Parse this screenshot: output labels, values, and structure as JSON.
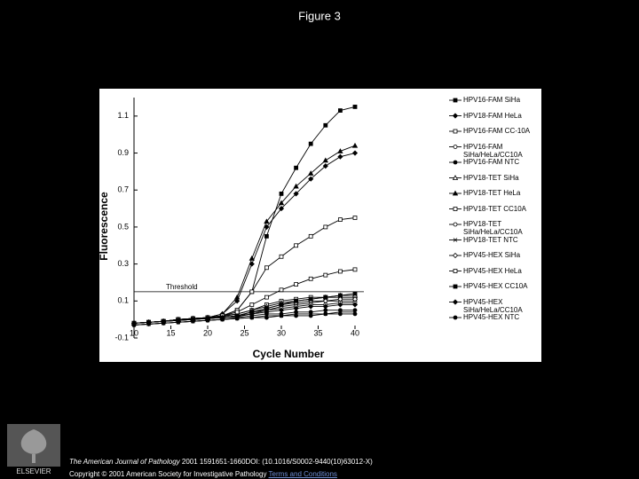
{
  "slide_title": "Figure 3",
  "publisher_logo": "ELSEVIER",
  "footer": {
    "journal": "The American Journal of Pathology",
    "citation": "2001 1591651-1660DOI: (10.1016/S0002-9440(10)63012-X)",
    "copyright": "Copyright © 2001 American Society for Investigative Pathology",
    "link": "Terms and Conditions"
  },
  "chart_data": {
    "type": "line",
    "x_label": "Cycle Number",
    "y_label": "Fluorescence",
    "x": [
      10,
      12,
      14,
      16,
      18,
      20,
      22,
      24,
      26,
      28,
      30,
      32,
      34,
      36,
      38,
      40
    ],
    "xlim": [
      10,
      40
    ],
    "xticks": [
      10,
      15,
      20,
      25,
      30,
      35,
      40
    ],
    "ylim": [
      -0.1,
      1.2
    ],
    "yticks": [
      -0.1,
      0.1,
      0.3,
      0.5,
      0.7,
      0.9,
      1.1
    ],
    "threshold": {
      "value": 0.15,
      "label": "Threshold"
    },
    "series": [
      {
        "name": "HPV16-FAM SiHa",
        "color": "#000000",
        "marker": "square",
        "values": [
          -0.02,
          -0.015,
          -0.01,
          0,
          0.005,
          0.01,
          0.02,
          0.05,
          0.15,
          0.45,
          0.68,
          0.82,
          0.95,
          1.05,
          1.13,
          1.15
        ]
      },
      {
        "name": "HPV18-FAM HeLa",
        "color": "#000000",
        "marker": "diamond",
        "values": [
          -0.02,
          -0.015,
          -0.01,
          0,
          0.005,
          0.01,
          0.03,
          0.1,
          0.3,
          0.5,
          0.6,
          0.68,
          0.76,
          0.83,
          0.88,
          0.9
        ]
      },
      {
        "name": "HPV16-FAM CC-10A",
        "color": "#000000",
        "marker": "square-open",
        "values": [
          -0.02,
          -0.015,
          -0.01,
          0,
          0.005,
          0.01,
          0.02,
          0.03,
          0.05,
          0.08,
          0.1,
          0.11,
          0.12,
          0.12,
          0.12,
          0.12
        ]
      },
      {
        "name": "HPV16-FAM SiHa/HeLa/CC10A",
        "color": "#000000",
        "marker": "circle-open",
        "values": [
          -0.02,
          -0.015,
          -0.01,
          -0.005,
          0,
          0.005,
          0.01,
          0.02,
          0.04,
          0.05,
          0.07,
          0.08,
          0.09,
          0.1,
          0.1,
          0.1
        ]
      },
      {
        "name": "HPV16-FAM NTC",
        "color": "#000000",
        "marker": "circle",
        "values": [
          -0.03,
          -0.025,
          -0.02,
          -0.015,
          -0.01,
          -0.005,
          0,
          0.01,
          0.02,
          0.03,
          0.03,
          0.04,
          0.04,
          0.05,
          0.05,
          0.05
        ]
      },
      {
        "name": "HPV18-TET SiHa",
        "color": "#000000",
        "marker": "triangle-open",
        "values": [
          -0.02,
          -0.015,
          -0.01,
          0,
          0.005,
          0.01,
          0.015,
          0.03,
          0.05,
          0.07,
          0.09,
          0.1,
          0.11,
          0.12,
          0.13,
          0.13
        ]
      },
      {
        "name": "HPV18-TET HeLa",
        "color": "#000000",
        "marker": "triangle",
        "values": [
          -0.02,
          -0.015,
          -0.01,
          0,
          0.005,
          0.01,
          0.03,
          0.12,
          0.33,
          0.53,
          0.63,
          0.72,
          0.79,
          0.86,
          0.91,
          0.94
        ]
      },
      {
        "name": "HPV18-TET CC10A",
        "color": "#000000",
        "marker": "square-open",
        "values": [
          -0.02,
          -0.015,
          -0.01,
          0,
          0.005,
          0.01,
          0.02,
          0.05,
          0.15,
          0.28,
          0.34,
          0.4,
          0.45,
          0.5,
          0.54,
          0.55
        ]
      },
      {
        "name": "HPV18-TET SiHa/HeLa/CC10A",
        "color": "#000000",
        "marker": "circle-open",
        "values": [
          -0.02,
          -0.015,
          -0.01,
          -0.005,
          0,
          0.005,
          0.01,
          0.02,
          0.03,
          0.05,
          0.06,
          0.07,
          0.08,
          0.08,
          0.09,
          0.09
        ]
      },
      {
        "name": "HPV18-TET NTC",
        "color": "#000000",
        "marker": "x",
        "values": [
          -0.03,
          -0.025,
          -0.02,
          -0.015,
          -0.01,
          -0.005,
          0,
          0.005,
          0.01,
          0.02,
          0.02,
          0.03,
          0.03,
          0.03,
          0.04,
          0.04
        ]
      },
      {
        "name": "HPV45-HEX SiHa",
        "color": "#000000",
        "marker": "diamond-open",
        "values": [
          -0.02,
          -0.015,
          -0.01,
          -0.005,
          0,
          0.005,
          0.01,
          0.02,
          0.04,
          0.06,
          0.08,
          0.09,
          0.1,
          0.1,
          0.11,
          0.11
        ]
      },
      {
        "name": "HPV45-HEX HeLa",
        "color": "#000000",
        "marker": "square-open",
        "values": [
          -0.02,
          -0.015,
          -0.01,
          0,
          0.005,
          0.01,
          0.02,
          0.04,
          0.08,
          0.12,
          0.16,
          0.19,
          0.22,
          0.24,
          0.26,
          0.27
        ]
      },
      {
        "name": "HPV45-HEX CC10A",
        "color": "#000000",
        "marker": "square",
        "values": [
          -0.02,
          -0.015,
          -0.01,
          -0.005,
          0,
          0.005,
          0.01,
          0.02,
          0.04,
          0.06,
          0.08,
          0.1,
          0.11,
          0.12,
          0.13,
          0.14
        ]
      },
      {
        "name": "HPV45-HEX SiHa/HeLa/CC10A",
        "color": "#000000",
        "marker": "diamond",
        "values": [
          -0.02,
          -0.015,
          -0.01,
          -0.005,
          0,
          0.005,
          0.01,
          0.015,
          0.03,
          0.04,
          0.05,
          0.06,
          0.07,
          0.07,
          0.08,
          0.08
        ]
      },
      {
        "name": "HPV45-HEX NTC",
        "color": "#000000",
        "marker": "circle",
        "values": [
          -0.03,
          -0.025,
          -0.02,
          -0.015,
          -0.01,
          -0.005,
          0,
          0.005,
          0.01,
          0.01,
          0.02,
          0.02,
          0.02,
          0.03,
          0.03,
          0.03
        ]
      }
    ]
  }
}
